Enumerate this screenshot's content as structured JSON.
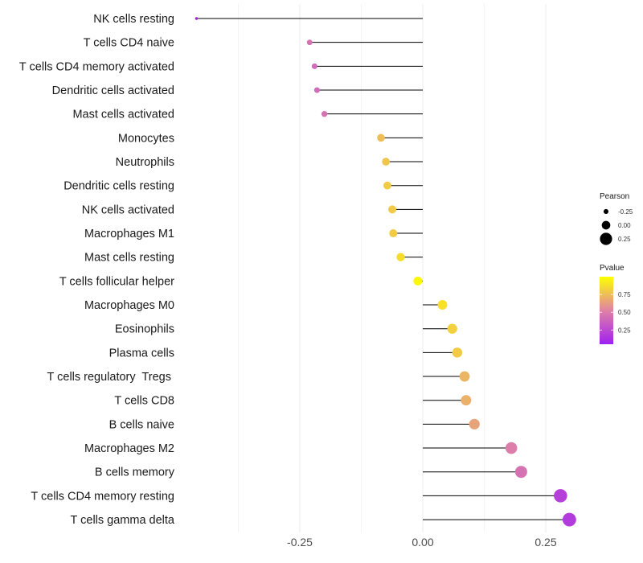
{
  "chart_data": {
    "type": "lollipop",
    "title": "",
    "xlabel": "",
    "ylabel": "",
    "xlim": [
      -0.45,
      0.31
    ],
    "x_ticks": [
      -0.25,
      0.0,
      0.25
    ],
    "x_tick_labels": [
      "-0.25",
      "0.00",
      "0.25"
    ],
    "grid": true,
    "categories": [
      "NK cells resting",
      "T cells CD4 naive",
      "T cells CD4 memory activated",
      "Dendritic cells activated",
      "Mast cells activated",
      "Monocytes",
      "Neutrophils",
      "Dendritic cells resting",
      "NK cells activated",
      "Macrophages M1",
      "Mast cells resting",
      "T cells follicular helper",
      "Macrophages M0",
      "Eosinophils",
      "Plasma cells",
      "T cells regulatory  Tregs ",
      "T cells CD8",
      "B cells naive",
      "Macrophages M2",
      "B cells memory",
      "T cells CD4 memory resting",
      "T cells gamma delta"
    ],
    "pearson": [
      -0.46,
      -0.23,
      -0.22,
      -0.215,
      -0.2,
      -0.085,
      -0.075,
      -0.072,
      -0.062,
      -0.06,
      -0.045,
      -0.01,
      0.04,
      0.06,
      0.07,
      0.085,
      0.088,
      0.105,
      0.18,
      0.2,
      0.28,
      0.298
    ],
    "pvalue": [
      0.02,
      0.45,
      0.42,
      0.42,
      0.45,
      0.75,
      0.78,
      0.8,
      0.8,
      0.8,
      0.87,
      0.97,
      0.88,
      0.82,
      0.8,
      0.72,
      0.7,
      0.65,
      0.5,
      0.45,
      0.2,
      0.18
    ],
    "legend": {
      "position": "right",
      "size_title": "Pearson",
      "size_labels": [
        "-0.25",
        "0.00",
        "0.25"
      ],
      "size_values": [
        -0.25,
        0.0,
        0.25
      ],
      "color_title": "Pvalue",
      "color_labels": [
        "0.75",
        "0.50",
        "0.25"
      ],
      "color_values": [
        0.75,
        0.5,
        0.25
      ],
      "color_range": [
        0.05,
        1.0
      ],
      "color_low": "#a020f0",
      "color_high": "#ffff00"
    }
  }
}
